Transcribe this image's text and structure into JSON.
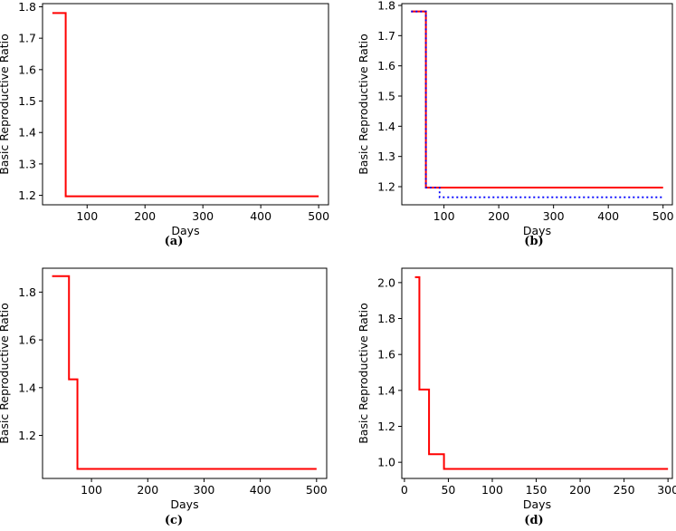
{
  "chart_data": [
    {
      "type": "line",
      "caption": "(a)",
      "xlabel": "Days",
      "ylabel": "Basic Reproductive Ratio",
      "xlim": [
        23,
        517
      ],
      "ylim": [
        1.17,
        1.81
      ],
      "xticks": [
        100,
        200,
        300,
        400,
        500
      ],
      "yticks": [
        1.2,
        1.3,
        1.4,
        1.5,
        1.6,
        1.7,
        1.8
      ],
      "ytick_labels": [
        "1.2",
        "1.3",
        "1.4",
        "1.5",
        "1.6",
        "1.7",
        "1.8"
      ],
      "series": [
        {
          "color": "#ff0000",
          "style": "solid",
          "x": [
            40,
            63,
            63,
            500
          ],
          "y": [
            1.78,
            1.78,
            1.197,
            1.197
          ]
        }
      ]
    },
    {
      "type": "line",
      "caption": "(b)",
      "xlabel": "Days",
      "ylabel": "Basic Reproductive Ratio",
      "xlim": [
        23,
        517
      ],
      "ylim": [
        1.14,
        1.806
      ],
      "xticks": [
        100,
        200,
        300,
        400,
        500
      ],
      "yticks": [
        1.2,
        1.3,
        1.4,
        1.5,
        1.6,
        1.7,
        1.8
      ],
      "ytick_labels": [
        "1.2",
        "1.3",
        "1.4",
        "1.5",
        "1.6",
        "1.7",
        "1.8"
      ],
      "series": [
        {
          "color": "#ff0000",
          "style": "solid",
          "x": [
            40,
            67,
            67,
            500
          ],
          "y": [
            1.78,
            1.78,
            1.197,
            1.197
          ]
        },
        {
          "color": "#0000ff",
          "style": "dotted",
          "x": [
            40,
            67,
            67,
            92,
            92,
            500
          ],
          "y": [
            1.78,
            1.78,
            1.197,
            1.197,
            1.165,
            1.165
          ]
        }
      ]
    },
    {
      "type": "line",
      "caption": "(c)",
      "xlabel": "Days",
      "ylabel": "Basic Reproductive Ratio",
      "xlim": [
        13,
        518
      ],
      "ylim": [
        1.02,
        1.9
      ],
      "xticks": [
        100,
        200,
        300,
        400,
        500
      ],
      "yticks": [
        1.2,
        1.4,
        1.6,
        1.8
      ],
      "ytick_labels": [
        "1.2",
        "1.4",
        "1.6",
        "1.8"
      ],
      "series": [
        {
          "color": "#ff0000",
          "style": "solid",
          "x": [
            30,
            60,
            60,
            75,
            75,
            500
          ],
          "y": [
            1.867,
            1.867,
            1.435,
            1.435,
            1.06,
            1.06
          ]
        }
      ]
    },
    {
      "type": "line",
      "caption": "(d)",
      "xlabel": "Days",
      "ylabel": "Basic Reproductive Ratio",
      "xlim": [
        -3,
        305
      ],
      "ylim": [
        0.91,
        2.08
      ],
      "xticks": [
        0,
        50,
        100,
        150,
        200,
        250,
        300
      ],
      "yticks": [
        1.0,
        1.2,
        1.4,
        1.6,
        1.8,
        2.0
      ],
      "ytick_labels": [
        "1.0",
        "1.2",
        "1.4",
        "1.6",
        "1.8",
        "2.0"
      ],
      "series": [
        {
          "color": "#ff0000",
          "style": "solid",
          "x": [
            12,
            17,
            17,
            28,
            28,
            45,
            45,
            300
          ],
          "y": [
            2.03,
            2.03,
            1.405,
            1.405,
            1.045,
            1.045,
            0.963,
            0.963
          ]
        }
      ]
    }
  ]
}
